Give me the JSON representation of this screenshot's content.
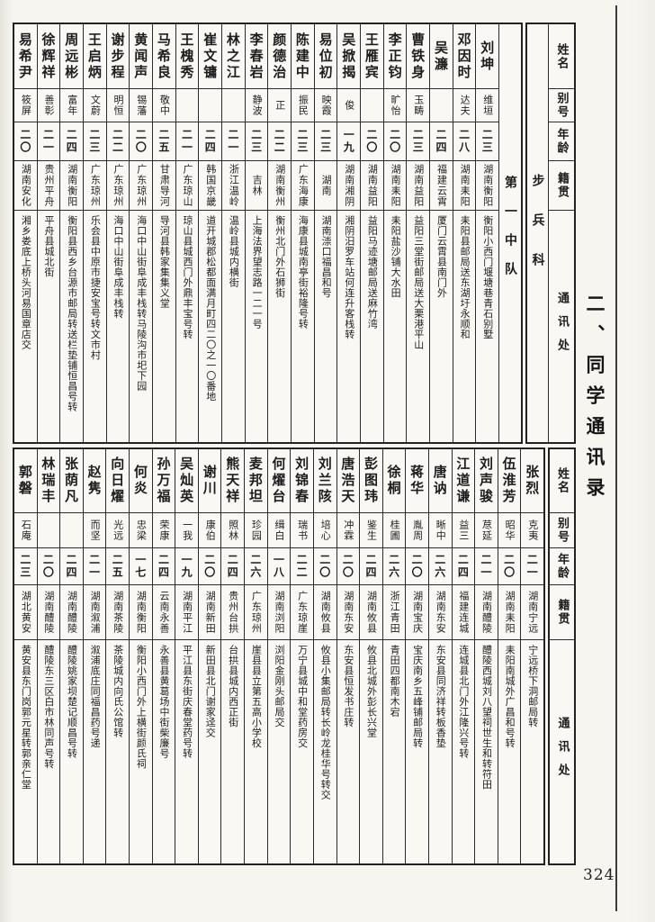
{
  "page": {
    "title": "二、同学通讯录",
    "page_number": "324",
    "branch": "步兵科",
    "squad": "第一中队",
    "paper_color": "#f7f5f0",
    "ink_color": "#1d1d1d"
  },
  "headers": {
    "name": "姓名",
    "alias": "别号",
    "age": "年龄",
    "origin": "籍贯",
    "address": "通讯处"
  },
  "top_table": {
    "entries": [
      {
        "name": "易希尹",
        "alias": "筱屏",
        "age": "二〇",
        "origin": "湖南安化",
        "address": "湘乡娄底上桥头河易国章店交"
      },
      {
        "name": "徐辉祥",
        "alias": "善彰",
        "age": "二一",
        "origin": "贵州平舟",
        "address": "平舟县城北街"
      },
      {
        "name": "周远彬",
        "alias": "富年",
        "age": "二四",
        "origin": "湖南衡阳",
        "address": "衡阳县西乡台源市邮局转送栏垫铺恒昌号转"
      },
      {
        "name": "王启炳",
        "alias": "文蔚",
        "age": "二三",
        "origin": "广东琼州",
        "address": "乐会县中原市捷安宝号转文市村"
      },
      {
        "name": "谢步程",
        "alias": "明恒",
        "age": "二二",
        "origin": "广东琼州",
        "address": "海口中山街阜成丰栈转"
      },
      {
        "name": "黄闻声",
        "alias": "锡藩",
        "age": "二〇",
        "origin": "广东琼州",
        "address": "海口中山街阜成丰栈转马陵沟市圯下园"
      },
      {
        "name": "马希良",
        "alias": "敬中",
        "age": "二五",
        "origin": "甘肃导河",
        "address": "导河县韩家集集义堂"
      },
      {
        "name": "王槐秀",
        "alias": "",
        "age": "二一",
        "origin": "广东琼山",
        "address": "琼山县城西门外鼎丰宝号转"
      },
      {
        "name": "崔文镛",
        "alias": "",
        "age": "二四",
        "origin": "韩国京畿",
        "address": "道开城郡松都面满月町四二〇之一〇番地"
      },
      {
        "name": "林之江",
        "alias": "",
        "age": "二一",
        "origin": "浙江温岭",
        "address": "温岭县城内横街"
      },
      {
        "name": "李春岩",
        "alias": "静波",
        "age": "二三",
        "origin": "吉林",
        "address": "上海法界望志路一二一号"
      },
      {
        "name": "颜德治",
        "alias": "正",
        "age": "二二",
        "origin": "湖南衡州",
        "address": "衡州北门外石狮街"
      },
      {
        "name": "陈建中",
        "alias": "振民",
        "age": "二三",
        "origin": "广东海康",
        "address": "海康县城南亭街裕隆号转"
      },
      {
        "name": "易位初",
        "alias": "映霞",
        "age": "二三",
        "origin": "湖南",
        "address": "湖南漴口福昌和号"
      },
      {
        "name": "吴掀揭",
        "alias": "俊",
        "age": "一九",
        "origin": "湖南湘阴",
        "address": "湘阴汨罗车站何连升客栈转"
      },
      {
        "name": "王雁宾",
        "alias": "",
        "age": "二〇",
        "origin": "湖南益阳",
        "address": "益阳马迹塘邮局送麻竹湾"
      },
      {
        "name": "李正钧",
        "alias": "旷怡",
        "age": "二〇",
        "origin": "湖南耒阳",
        "address": "耒阳盐沙铺大水田"
      },
      {
        "name": "曹铁身",
        "alias": "玉畴",
        "age": "二三",
        "origin": "湖南益阳",
        "address": "益阳三堂街邮局送大栗港平山"
      },
      {
        "name": "吴濂",
        "alias": "",
        "age": "二四",
        "origin": "福建云霄",
        "address": "厦门云霄县南门外"
      },
      {
        "name": "邓因时",
        "alias": "达夫",
        "age": "二八",
        "origin": "湖南耒阳",
        "address": "耒阳县邮局送东湖圩永顺和"
      },
      {
        "name": "刘坤",
        "alias": "维垣",
        "age": "二三",
        "origin": "湖南衡阳",
        "address": "衡阳小西门堰塘巷青石别墅"
      }
    ]
  },
  "bottom_table": {
    "entries": [
      {
        "name": "郭磐",
        "alias": "石庵",
        "age": "二三",
        "origin": "湖北黄安",
        "address": "黄安县东门岗郭元星转郭亲仁堂"
      },
      {
        "name": "林瑞丰",
        "alias": "",
        "age": "二〇",
        "origin": "湖南醴陵",
        "address": "醴陵东三区白市林同声号转"
      },
      {
        "name": "张荫凡",
        "alias": "",
        "age": "二四",
        "origin": "湖南醴陵",
        "address": "醴陵姚家坝楚记顺昌号转"
      },
      {
        "name": "赵隽",
        "alias": "而坚",
        "age": "二一",
        "origin": "湖南溆浦",
        "address": "溆浦底庄同福昌药号递"
      },
      {
        "name": "向日燿",
        "alias": "光远",
        "age": "二五",
        "origin": "湖南茶陵",
        "address": "茶陵城内向氏公馆转"
      },
      {
        "name": "何炎",
        "alias": "忠梁",
        "age": "一七",
        "origin": "湖南衡阳",
        "address": "衡阳小西门外上横街颜氏祠"
      },
      {
        "name": "孙万福",
        "alias": "荣康",
        "age": "二四",
        "origin": "云南永善",
        "address": "永善县黄葛场中街柴廉号"
      },
      {
        "name": "吴灿英",
        "alias": "一我",
        "age": "一九",
        "origin": "湖南平江",
        "address": "平江县东街庆春堂药号转"
      },
      {
        "name": "谢川",
        "alias": "康伯",
        "age": "二〇",
        "origin": "湖南新田",
        "address": "新田县北门谢家迳交"
      },
      {
        "name": "熊天祥",
        "alias": "照林",
        "age": "二四",
        "origin": "贵州台拱",
        "address": "台拱县城内西正街"
      },
      {
        "name": "麦邦坦",
        "alias": "珍园",
        "age": "二六",
        "origin": "广东琼州",
        "address": "崖县县立第五高小学校"
      },
      {
        "name": "何燿台",
        "alias": "缉白",
        "age": "一八",
        "origin": "湖南浏阳",
        "address": "浏阳金刚头邮局交"
      },
      {
        "name": "刘锦春",
        "alias": "瑞书",
        "age": "二二",
        "origin": "广东琼崖",
        "address": "万宁县城中和堂药房交"
      },
      {
        "name": "刘兰陔",
        "alias": "培心",
        "age": "二〇",
        "origin": "湖南攸县",
        "address": "攸县小集邮局转长岭龙桂华号转交"
      },
      {
        "name": "唐浩天",
        "alias": "冲霖",
        "age": "二〇",
        "origin": "湖南东安",
        "address": "东安县恒发书庄转"
      },
      {
        "name": "彭图玮",
        "alias": "鉴生",
        "age": "二四",
        "origin": "湖南攸县",
        "address": "攸县北城外彭长兴堂"
      },
      {
        "name": "徐桐",
        "alias": "桂圃",
        "age": "二六",
        "origin": "浙江青田",
        "address": "青田四都南木宕"
      },
      {
        "name": "蒋华",
        "alias": "胤周",
        "age": "二〇",
        "origin": "湖南宝庆",
        "address": "宝庆南乡五峰铺邮局转"
      },
      {
        "name": "唐讷",
        "alias": "晰中",
        "age": "二六",
        "origin": "湖南东安",
        "address": "东安县同济祥转板香垫"
      },
      {
        "name": "江道谦",
        "alias": "益三",
        "age": "二四",
        "origin": "福建连城",
        "address": "连城县北门外江隆兴号转"
      },
      {
        "name": "刘声骏",
        "alias": "荩延",
        "age": "二一",
        "origin": "湖南醴陵",
        "address": "醴陵西城刘八望祠世生和转符田"
      },
      {
        "name": "伍淮芳",
        "alias": "昭华",
        "age": "二〇",
        "origin": "湖南耒阳",
        "address": "耒阳南城外广昌和号转"
      },
      {
        "name": "张烈",
        "alias": "克夷",
        "age": "二一",
        "origin": "湖南宁远",
        "address": "宁远桥下洞邮局转"
      }
    ]
  }
}
